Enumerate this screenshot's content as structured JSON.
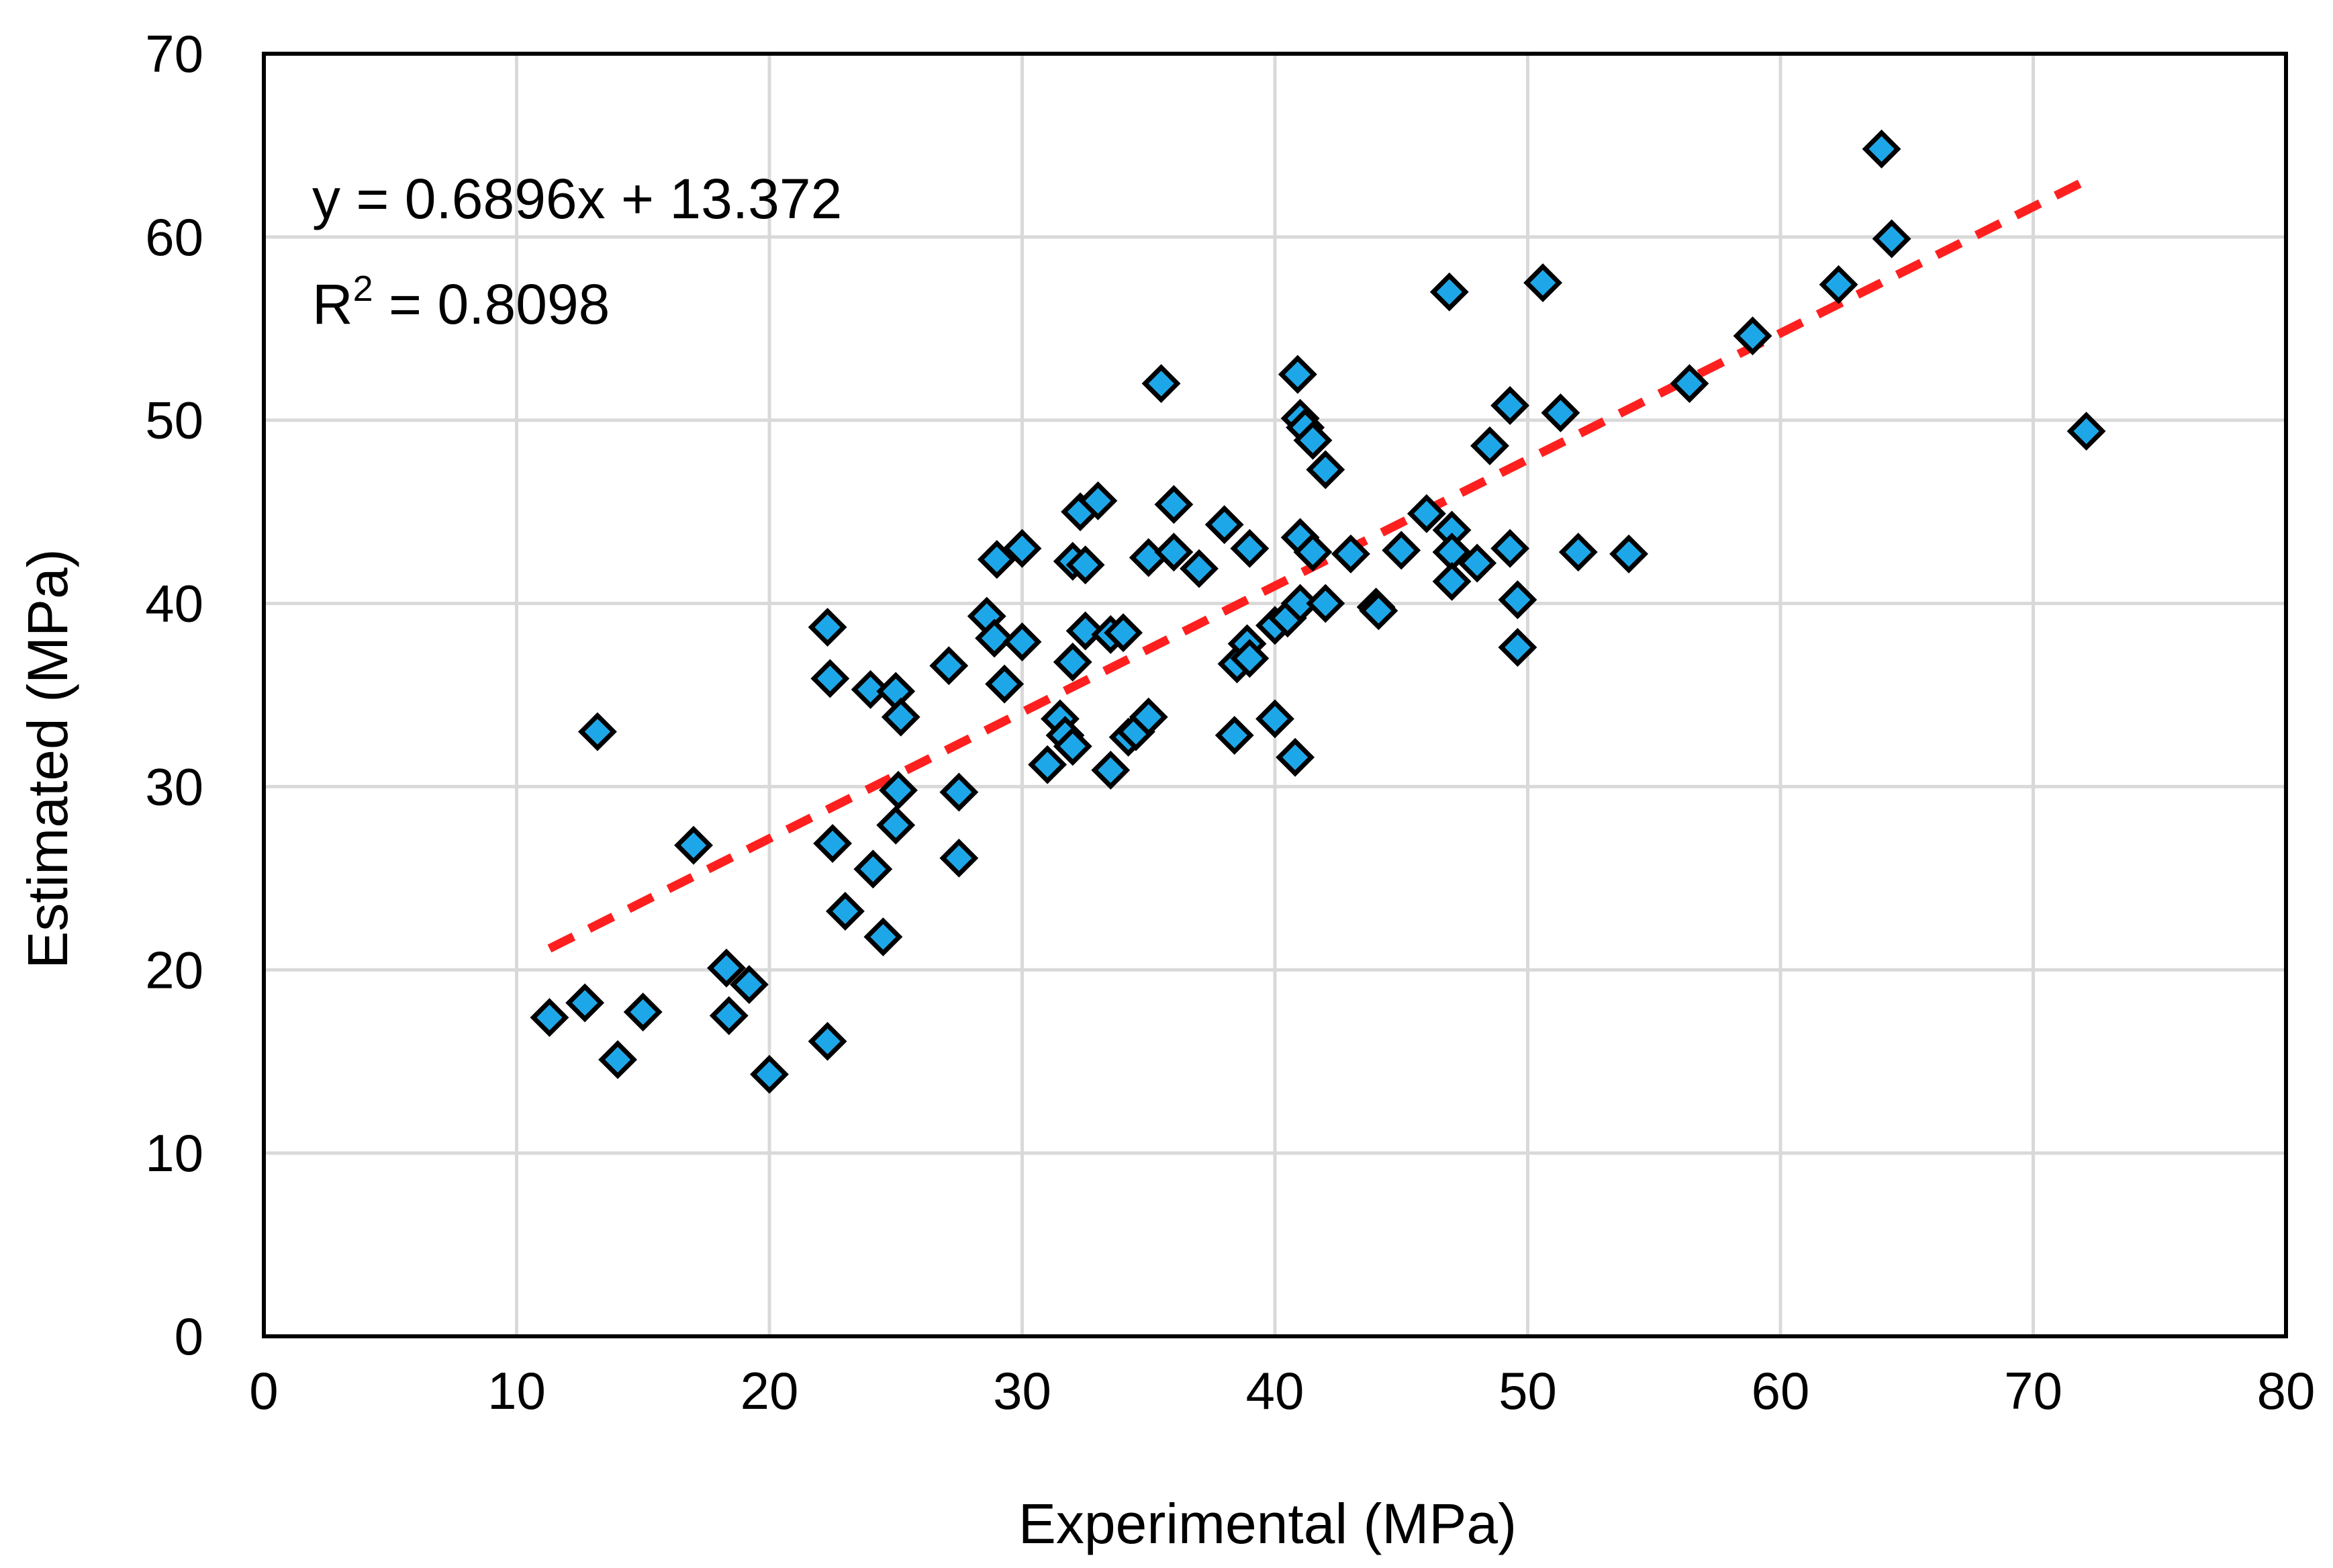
{
  "chart_data": {
    "type": "scatter",
    "xlabel": "Experimental (MPa)",
    "ylabel": "Estimated (MPa)",
    "xlim": [
      0,
      80
    ],
    "ylim": [
      0,
      70
    ],
    "xticks": [
      0,
      10,
      20,
      30,
      40,
      50,
      60,
      70,
      80
    ],
    "yticks": [
      0,
      10,
      20,
      30,
      40,
      50,
      60,
      70
    ],
    "grid": true,
    "legend": "none",
    "marker": "diamond",
    "marker_color": "#1ea7e8",
    "trend_color": "#ff1f1f",
    "equation_text": "y = 0.6896x + 13.372",
    "r2_prefix": "R",
    "r2_sup": "2",
    "r2_suffix": " = 0.8098",
    "trendline": {
      "slope": 0.6896,
      "intercept": 13.372,
      "x_start": 11.3,
      "x_end": 72.2
    },
    "points": [
      [
        11.3,
        17.4
      ],
      [
        12.7,
        18.2
      ],
      [
        13.2,
        33.0
      ],
      [
        14.0,
        15.1
      ],
      [
        15.0,
        17.7
      ],
      [
        17.0,
        26.8
      ],
      [
        18.3,
        20.1
      ],
      [
        18.4,
        17.5
      ],
      [
        19.2,
        19.2
      ],
      [
        20.0,
        14.3
      ],
      [
        22.3,
        38.7
      ],
      [
        22.3,
        16.1
      ],
      [
        22.4,
        35.9
      ],
      [
        22.5,
        26.9
      ],
      [
        23.0,
        23.2
      ],
      [
        24.0,
        35.3
      ],
      [
        24.1,
        25.5
      ],
      [
        24.5,
        21.8
      ],
      [
        25.0,
        35.2
      ],
      [
        25.2,
        33.8
      ],
      [
        25.1,
        29.8
      ],
      [
        25.0,
        27.9
      ],
      [
        27.1,
        36.6
      ],
      [
        27.5,
        29.7
      ],
      [
        27.5,
        26.1
      ],
      [
        28.6,
        39.3
      ],
      [
        28.9,
        38.1
      ],
      [
        29.0,
        42.4
      ],
      [
        29.3,
        35.6
      ],
      [
        30.0,
        43.0
      ],
      [
        30.0,
        37.9
      ],
      [
        31.0,
        31.2
      ],
      [
        31.5,
        33.7
      ],
      [
        31.7,
        32.8
      ],
      [
        32.0,
        32.2
      ],
      [
        32.0,
        42.3
      ],
      [
        32.0,
        36.8
      ],
      [
        32.3,
        45.0
      ],
      [
        32.5,
        42.1
      ],
      [
        32.5,
        38.5
      ],
      [
        33.0,
        45.6
      ],
      [
        33.5,
        38.3
      ],
      [
        33.5,
        30.9
      ],
      [
        34.0,
        38.4
      ],
      [
        34.2,
        32.7
      ],
      [
        34.5,
        33.0
      ],
      [
        35.0,
        42.5
      ],
      [
        35.0,
        33.8
      ],
      [
        35.5,
        52.0
      ],
      [
        36.0,
        45.4
      ],
      [
        36.0,
        42.8
      ],
      [
        37.0,
        41.9
      ],
      [
        38.0,
        44.3
      ],
      [
        38.4,
        32.8
      ],
      [
        38.5,
        36.7
      ],
      [
        38.9,
        37.8
      ],
      [
        39.0,
        43.0
      ],
      [
        39.0,
        37.0
      ],
      [
        40.0,
        33.7
      ],
      [
        40.0,
        38.8
      ],
      [
        40.5,
        39.2
      ],
      [
        40.8,
        31.6
      ],
      [
        40.9,
        52.5
      ],
      [
        41.0,
        50.1
      ],
      [
        41.0,
        43.6
      ],
      [
        41.0,
        40.0
      ],
      [
        41.2,
        49.6
      ],
      [
        41.5,
        48.9
      ],
      [
        41.5,
        42.8
      ],
      [
        42.0,
        47.3
      ],
      [
        42.0,
        40.0
      ],
      [
        43.0,
        42.7
      ],
      [
        44.0,
        39.8
      ],
      [
        44.1,
        39.6
      ],
      [
        45.0,
        42.9
      ],
      [
        46.0,
        44.9
      ],
      [
        46.9,
        57.0
      ],
      [
        47.0,
        44.0
      ],
      [
        47.0,
        42.8
      ],
      [
        47.0,
        41.2
      ],
      [
        48.0,
        42.2
      ],
      [
        48.5,
        48.6
      ],
      [
        49.3,
        50.8
      ],
      [
        49.3,
        43.0
      ],
      [
        49.6,
        40.2
      ],
      [
        49.6,
        37.6
      ],
      [
        50.6,
        57.5
      ],
      [
        51.3,
        50.4
      ],
      [
        52.0,
        42.8
      ],
      [
        54.0,
        42.7
      ],
      [
        56.4,
        52.0
      ],
      [
        58.9,
        54.6
      ],
      [
        62.3,
        57.4
      ],
      [
        64.0,
        64.8
      ],
      [
        64.4,
        59.9
      ],
      [
        72.1,
        49.4
      ]
    ]
  }
}
